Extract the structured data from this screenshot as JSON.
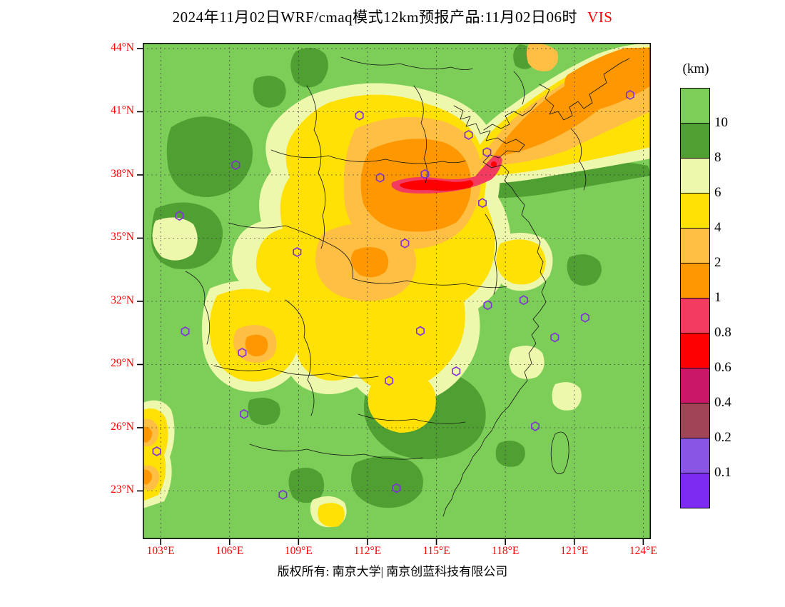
{
  "title": {
    "main": "2024年11月02日WRF/cmaq模式12km预报产品:11月02日06时",
    "variable": "VIS",
    "variable_color": "#ff0000"
  },
  "footer": {
    "credit": "版权所有: 南京大学| 南京创蓝科技有限公司"
  },
  "axes": {
    "lat_labels": [
      "44°N",
      "41°N",
      "38°N",
      "35°N",
      "32°N",
      "29°N",
      "26°N",
      "23°N"
    ],
    "lon_labels": [
      "103°E",
      "106°E",
      "109°E",
      "112°E",
      "115°E",
      "118°E",
      "121°E",
      "124°E"
    ],
    "label_color": "#ff0000"
  },
  "colorbar": {
    "unit": "(km)",
    "labels": [
      "10",
      "8",
      "6",
      "4",
      "2",
      "1",
      "0.8",
      "0.6",
      "0.4",
      "0.2",
      "0.1"
    ],
    "colors": [
      "#7dce58",
      "#4f9f33",
      "#eef8ac",
      "#ffe105",
      "#ffbf45",
      "#ff9800",
      "#f23b5f",
      "#fe0000",
      "#cb1767",
      "#a14458",
      "#8856e3",
      "#7d2bf2"
    ]
  },
  "chart_data": {
    "type": "heatmap",
    "title": "2024年11月02日WRF/cmaq模式12km预报产品:11月02日06时 VIS",
    "variable": "VIS",
    "unit": "km",
    "legend_position": "right",
    "grid": "dashed",
    "geo": {
      "lon_min": 102.22,
      "lon_max": 124.33,
      "lat_min": 20.71,
      "lat_max": 44.27
    },
    "x_axis": {
      "name": "longitude",
      "values": [
        103,
        106,
        109,
        112,
        115,
        118,
        121,
        124
      ],
      "tick_labels": [
        "103°E",
        "106°E",
        "109°E",
        "112°E",
        "115°E",
        "118°E",
        "121°E",
        "124°E"
      ]
    },
    "y_axis": {
      "name": "latitude",
      "values": [
        44,
        41,
        38,
        35,
        32,
        29,
        26,
        23
      ],
      "tick_labels": [
        "44°N",
        "41°N",
        "38°N",
        "35°N",
        "32°N",
        "29°N",
        "26°N",
        "23°N"
      ]
    },
    "levels_km": [
      0.1,
      0.2,
      0.4,
      0.6,
      0.8,
      1,
      2,
      4,
      6,
      8,
      10
    ],
    "palette_top_to_bottom": [
      "#7dce58",
      "#4f9f33",
      "#eef8ac",
      "#ffe105",
      "#ffbf45",
      "#ff9800",
      "#f23b5f",
      "#fe0000",
      "#cb1767",
      "#a14458",
      "#8856e3",
      "#7d2bf2"
    ],
    "station_markers": [
      [
        111.65,
        40.82
      ],
      [
        116.4,
        39.9
      ],
      [
        117.2,
        39.08
      ],
      [
        114.5,
        38.04
      ],
      [
        112.55,
        37.87
      ],
      [
        117.0,
        36.67
      ],
      [
        106.27,
        38.47
      ],
      [
        103.82,
        36.06
      ],
      [
        108.94,
        34.34
      ],
      [
        113.63,
        34.75
      ],
      [
        117.23,
        31.82
      ],
      [
        118.8,
        32.06
      ],
      [
        121.47,
        31.23
      ],
      [
        120.15,
        30.29
      ],
      [
        114.3,
        30.59
      ],
      [
        112.94,
        28.23
      ],
      [
        115.86,
        28.68
      ],
      [
        104.07,
        30.57
      ],
      [
        106.55,
        29.56
      ],
      [
        106.63,
        26.65
      ],
      [
        102.83,
        24.88
      ],
      [
        108.32,
        22.82
      ],
      [
        113.26,
        23.13
      ],
      [
        119.3,
        26.07
      ],
      [
        123.43,
        41.8
      ]
    ]
  }
}
